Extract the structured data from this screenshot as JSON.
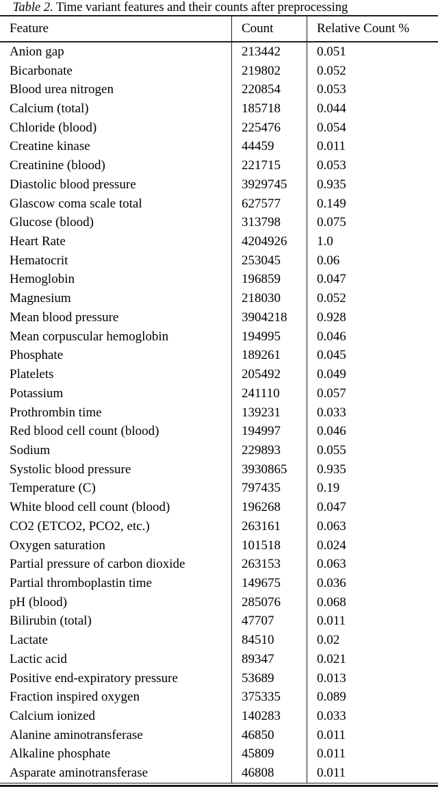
{
  "caption": {
    "label": "Table 2.",
    "text": " Time variant features and their counts after preprocessing"
  },
  "table": {
    "columns": [
      "Feature",
      "Count",
      "Relative Count %"
    ],
    "rows": [
      {
        "feature": "Anion gap",
        "count": "213442",
        "relative": "0.051"
      },
      {
        "feature": "Bicarbonate",
        "count": "219802",
        "relative": "0.052"
      },
      {
        "feature": "Blood urea nitrogen",
        "count": "220854",
        "relative": "0.053"
      },
      {
        "feature": "Calcium (total)",
        "count": "185718",
        "relative": "0.044"
      },
      {
        "feature": "Chloride (blood)",
        "count": "225476",
        "relative": "0.054"
      },
      {
        "feature": "Creatine kinase",
        "count": "44459",
        "relative": "0.011"
      },
      {
        "feature": "Creatinine (blood)",
        "count": "221715",
        "relative": "0.053"
      },
      {
        "feature": "Diastolic blood pressure",
        "count": "3929745",
        "relative": "0.935"
      },
      {
        "feature": "Glascow coma scale total",
        "count": "627577",
        "relative": "0.149"
      },
      {
        "feature": "Glucose (blood)",
        "count": "313798",
        "relative": "0.075"
      },
      {
        "feature": "Heart Rate",
        "count": "4204926",
        "relative": "1.0"
      },
      {
        "feature": "Hematocrit",
        "count": "253045",
        "relative": "0.06"
      },
      {
        "feature": "Hemoglobin",
        "count": "196859",
        "relative": "0.047"
      },
      {
        "feature": "Magnesium",
        "count": "218030",
        "relative": "0.052"
      },
      {
        "feature": "Mean blood pressure",
        "count": "3904218",
        "relative": "0.928"
      },
      {
        "feature": "Mean corpuscular hemoglobin",
        "count": "194995",
        "relative": "0.046"
      },
      {
        "feature": "Phosphate",
        "count": "189261",
        "relative": "0.045"
      },
      {
        "feature": "Platelets",
        "count": "205492",
        "relative": "0.049"
      },
      {
        "feature": "Potassium",
        "count": "241110",
        "relative": "0.057"
      },
      {
        "feature": "Prothrombin time",
        "count": "139231",
        "relative": "0.033"
      },
      {
        "feature": "Red blood cell count (blood)",
        "count": "194997",
        "relative": "0.046"
      },
      {
        "feature": "Sodium",
        "count": "229893",
        "relative": "0.055"
      },
      {
        "feature": "Systolic blood pressure",
        "count": "3930865",
        "relative": "0.935"
      },
      {
        "feature": "Temperature (C)",
        "count": "797435",
        "relative": "0.19"
      },
      {
        "feature": "White blood cell count (blood)",
        "count": "196268",
        "relative": "0.047"
      },
      {
        "feature": "CO2 (ETCO2, PCO2, etc.)",
        "count": "263161",
        "relative": "0.063"
      },
      {
        "feature": "Oxygen saturation",
        "count": "101518",
        "relative": "0.024"
      },
      {
        "feature": "Partial pressure of carbon dioxide",
        "count": "263153",
        "relative": "0.063"
      },
      {
        "feature": "Partial thromboplastin time",
        "count": "149675",
        "relative": "0.036"
      },
      {
        "feature": "pH (blood)",
        "count": "285076",
        "relative": "0.068"
      },
      {
        "feature": "Bilirubin (total)",
        "count": "47707",
        "relative": "0.011"
      },
      {
        "feature": "Lactate",
        "count": "84510",
        "relative": "0.02"
      },
      {
        "feature": "Lactic acid",
        "count": "89347",
        "relative": "0.021"
      },
      {
        "feature": "Positive end-expiratory pressure",
        "count": "53689",
        "relative": "0.013"
      },
      {
        "feature": "Fraction inspired oxygen",
        "count": "375335",
        "relative": "0.089"
      },
      {
        "feature": "Calcium ionized",
        "count": "140283",
        "relative": "0.033"
      },
      {
        "feature": "Alanine aminotransferase",
        "count": "46850",
        "relative": "0.011"
      },
      {
        "feature": "Alkaline phosphate",
        "count": "45809",
        "relative": "0.011"
      },
      {
        "feature": "Asparate aminotransferase",
        "count": "46808",
        "relative": "0.011"
      }
    ]
  }
}
